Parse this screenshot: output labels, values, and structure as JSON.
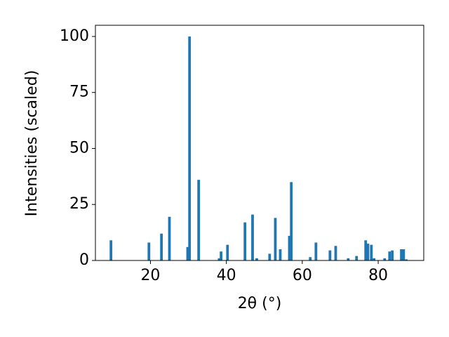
{
  "chart_data": {
    "type": "bar",
    "xlabel": "2θ (°)",
    "ylabel": "Intensities (scaled)",
    "x": [
      9.6,
      19.6,
      22.9,
      25.0,
      29.8,
      30.3,
      32.7,
      38.1,
      38.6,
      40.3,
      44.9,
      46.9,
      48.0,
      51.4,
      52.9,
      54.2,
      56.6,
      57.1,
      62.1,
      63.6,
      67.3,
      68.8,
      72.1,
      74.3,
      76.7,
      77.3,
      78.2,
      78.9,
      81.7,
      83.0,
      83.7,
      86.1,
      86.7,
      87.4
    ],
    "values": [
      9,
      8,
      12,
      19.5,
      6,
      100,
      36,
      1,
      4,
      7,
      17,
      20.5,
      1,
      3,
      19,
      5,
      11,
      35,
      1.5,
      8,
      4.5,
      6.5,
      1,
      2,
      9,
      7.5,
      7,
      1,
      1,
      4,
      4.5,
      5,
      5,
      0.5
    ],
    "color": "#1f77b4",
    "xlim": [
      5.5,
      92
    ],
    "ylim": [
      0,
      105
    ],
    "xticks": [
      20,
      40,
      60,
      80
    ],
    "yticks": [
      0,
      25,
      50,
      75,
      100
    ],
    "grid": false
  }
}
